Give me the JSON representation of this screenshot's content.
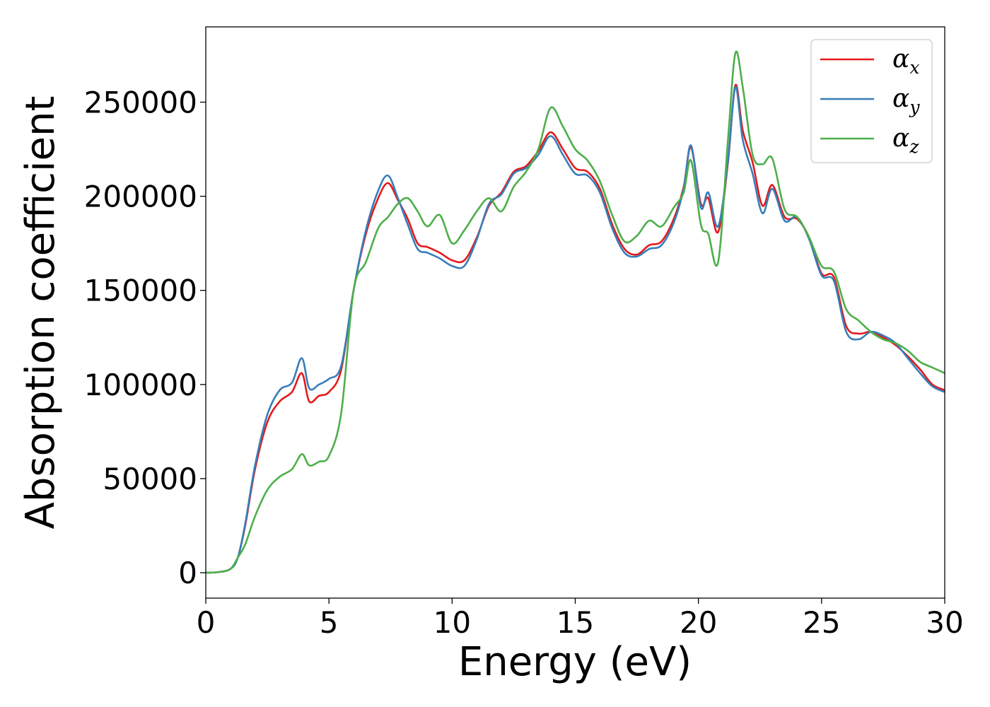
{
  "chart_data": {
    "type": "line",
    "xlabel": "Energy (eV)",
    "ylabel": "Absorption coefficient",
    "xlim": [
      0,
      30
    ],
    "ylim": [
      -13500,
      290000
    ],
    "xticks": [
      0,
      5,
      10,
      15,
      20,
      25,
      30
    ],
    "yticks": [
      0,
      50000,
      100000,
      150000,
      200000,
      250000
    ],
    "grid": false,
    "legend_position": "top-right",
    "series": [
      {
        "name": "αx",
        "symbol": "α",
        "subscript": "x",
        "color": "#e41a1c",
        "x": [
          0,
          0.5,
          1.0,
          1.3,
          1.6,
          2.0,
          2.5,
          3.0,
          3.5,
          3.9,
          4.2,
          4.6,
          5.0,
          5.5,
          6.0,
          6.5,
          7.0,
          7.4,
          7.8,
          8.2,
          8.6,
          9.0,
          9.5,
          10.0,
          10.5,
          11.0,
          11.5,
          12.0,
          12.5,
          13.0,
          13.5,
          14.0,
          14.5,
          15.0,
          15.5,
          16.0,
          16.5,
          17.0,
          17.5,
          18.0,
          18.5,
          19.0,
          19.4,
          19.7,
          20.1,
          20.4,
          20.8,
          21.2,
          21.5,
          21.8,
          22.2,
          22.6,
          23.0,
          23.5,
          24.0,
          24.5,
          25.0,
          25.5,
          26.0,
          26.5,
          27.0,
          27.5,
          28.0,
          28.5,
          29.0,
          29.5,
          30.0
        ],
        "values": [
          0,
          300,
          2000,
          8000,
          25000,
          55000,
          80000,
          91000,
          96000,
          106000,
          91000,
          94000,
          96000,
          108000,
          150000,
          180000,
          199000,
          207000,
          198000,
          188000,
          175000,
          173000,
          170000,
          166000,
          166000,
          178000,
          195000,
          202000,
          213000,
          216000,
          224000,
          234000,
          225000,
          215000,
          213000,
          204000,
          185000,
          172000,
          169000,
          174000,
          176000,
          188000,
          205000,
          226000,
          196000,
          199000,
          181000,
          218000,
          259000,
          235000,
          218000,
          195000,
          206000,
          189000,
          188000,
          178000,
          159000,
          157000,
          131000,
          127000,
          128000,
          125000,
          121000,
          115000,
          108000,
          100000,
          97000
        ]
      },
      {
        "name": "αy",
        "symbol": "α",
        "subscript": "y",
        "color": "#377eb8",
        "x": [
          0,
          0.5,
          1.0,
          1.3,
          1.6,
          2.0,
          2.5,
          3.0,
          3.5,
          3.9,
          4.2,
          4.6,
          5.0,
          5.5,
          6.0,
          6.5,
          7.0,
          7.4,
          7.8,
          8.2,
          8.6,
          9.0,
          9.5,
          10.0,
          10.5,
          11.0,
          11.5,
          12.0,
          12.5,
          13.0,
          13.5,
          14.0,
          14.5,
          15.0,
          15.5,
          16.0,
          16.5,
          17.0,
          17.5,
          18.0,
          18.5,
          19.0,
          19.4,
          19.7,
          20.1,
          20.4,
          20.8,
          21.2,
          21.5,
          21.8,
          22.2,
          22.6,
          23.0,
          23.5,
          24.0,
          24.5,
          25.0,
          25.5,
          26.0,
          26.5,
          27.0,
          27.5,
          28.0,
          28.5,
          29.0,
          29.5,
          30.0
        ],
        "values": [
          0,
          300,
          2000,
          8000,
          26000,
          57000,
          84000,
          97000,
          101000,
          114000,
          98000,
          100000,
          103000,
          110000,
          150000,
          182000,
          203000,
          211000,
          199000,
          185000,
          172000,
          170000,
          167000,
          163000,
          163000,
          177000,
          196000,
          201000,
          212000,
          215000,
          222000,
          232000,
          222000,
          212000,
          211000,
          202000,
          183000,
          170000,
          168000,
          172000,
          174000,
          186000,
          204000,
          227000,
          194000,
          202000,
          184000,
          219000,
          258000,
          230000,
          212000,
          191000,
          204000,
          187000,
          189000,
          177000,
          158000,
          155000,
          128000,
          124000,
          128000,
          126000,
          122000,
          114000,
          106000,
          99000,
          96000
        ]
      },
      {
        "name": "αz",
        "symbol": "α",
        "subscript": "z",
        "color": "#4daf4a",
        "x": [
          0,
          0.5,
          1.0,
          1.3,
          1.6,
          2.0,
          2.5,
          3.0,
          3.5,
          3.9,
          4.2,
          4.6,
          5.0,
          5.5,
          6.0,
          6.5,
          7.0,
          7.4,
          7.8,
          8.2,
          8.6,
          9.0,
          9.5,
          10.0,
          10.5,
          11.0,
          11.5,
          12.0,
          12.5,
          13.0,
          13.5,
          14.0,
          14.5,
          15.0,
          15.5,
          16.0,
          16.5,
          17.0,
          17.5,
          18.0,
          18.5,
          19.0,
          19.4,
          19.7,
          20.1,
          20.4,
          20.8,
          21.2,
          21.5,
          21.8,
          22.2,
          22.6,
          23.0,
          23.5,
          24.0,
          24.5,
          25.0,
          25.5,
          26.0,
          26.5,
          27.0,
          27.5,
          28.0,
          28.5,
          29.0,
          29.5,
          30.0
        ],
        "values": [
          0,
          300,
          2000,
          8000,
          15000,
          30000,
          44000,
          51000,
          55000,
          63000,
          57000,
          59000,
          62000,
          85000,
          150000,
          165000,
          183000,
          189000,
          196000,
          199000,
          192000,
          184000,
          190000,
          175000,
          182000,
          192000,
          199000,
          192000,
          205000,
          213000,
          225000,
          247000,
          237000,
          225000,
          219000,
          208000,
          190000,
          176000,
          179000,
          187000,
          184000,
          194000,
          202000,
          219000,
          185000,
          180000,
          165000,
          230000,
          276000,
          258000,
          222000,
          217000,
          220000,
          193000,
          189000,
          178000,
          163000,
          160000,
          140000,
          134000,
          128000,
          124000,
          122000,
          118000,
          112000,
          109000,
          106000
        ]
      }
    ]
  }
}
